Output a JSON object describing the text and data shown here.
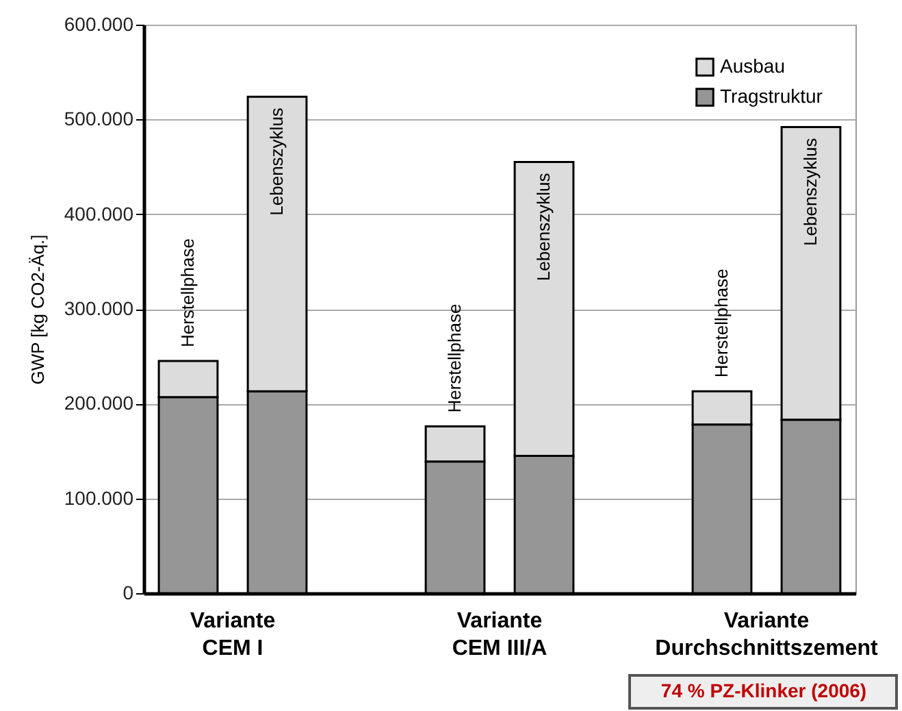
{
  "chart_data": {
    "type": "bar",
    "stacked": true,
    "categories": [
      "Herstellphase",
      "Lebenszyklus",
      "Herstellphase",
      "Lebenszyklus",
      "Herstellphase",
      "Lebenszyklus"
    ],
    "series": [
      {
        "name": "Tragstruktur",
        "color": "#969696",
        "values": [
          207000,
          213000,
          139000,
          145000,
          178000,
          183000
        ]
      },
      {
        "name": "Ausbau",
        "color": "#dcdcdc",
        "values": [
          38000,
          311000,
          37000,
          310000,
          35000,
          309000
        ]
      }
    ],
    "ylabel": "GWP [kg CO2-Äq.]",
    "ylim": [
      0,
      600000
    ],
    "yticks": [
      {
        "value": 0,
        "label": "0"
      },
      {
        "value": 100000,
        "label": "100.000"
      },
      {
        "value": 200000,
        "label": "200.000"
      },
      {
        "value": 300000,
        "label": "300.000"
      },
      {
        "value": 400000,
        "label": "400.000"
      },
      {
        "value": 500000,
        "label": "500.000"
      },
      {
        "value": 600000,
        "label": "600.000"
      }
    ],
    "grid": "y",
    "legend": "top right",
    "annotations": [
      "Variante\nCEM I",
      "Variante\nCEM III/A",
      "Variante\nDurchschnittszement",
      "74 % PZ-Klinker (2006)"
    ]
  }
}
